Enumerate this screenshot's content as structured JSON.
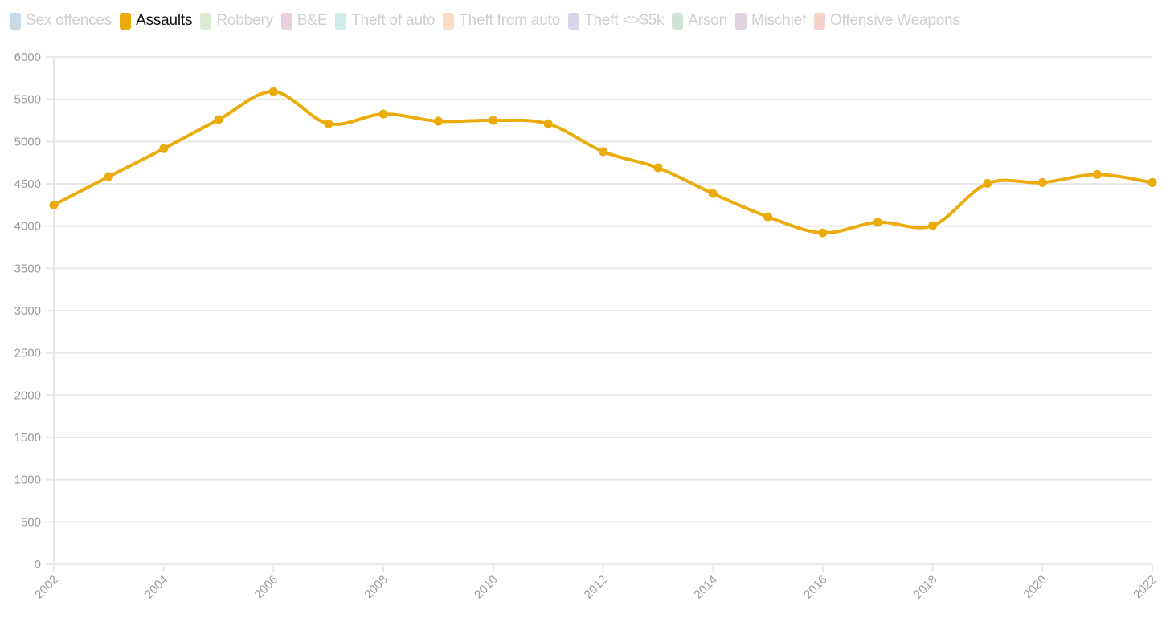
{
  "legend": [
    {
      "label": "Sex offences",
      "color": "#c9d9e6",
      "active": false
    },
    {
      "label": "Assaults",
      "color": "#ebab0b",
      "active": true
    },
    {
      "label": "Robbery",
      "color": "#dcebd3",
      "active": false
    },
    {
      "label": "B&E",
      "color": "#e8d0df",
      "active": false
    },
    {
      "label": "Theft of auto",
      "color": "#d1ebe9",
      "active": false
    },
    {
      "label": "Theft from auto",
      "color": "#f8dcc8",
      "active": false
    },
    {
      "label": "Theft <>$5k",
      "color": "#d8d5ea",
      "active": false
    },
    {
      "label": "Arson",
      "color": "#cfe4d7",
      "active": false
    },
    {
      "label": "Mischief",
      "color": "#e0d3e0",
      "active": false
    },
    {
      "label": "Offensive Weapons",
      "color": "#f6d2cc",
      "active": false
    }
  ],
  "colors": {
    "series": "#ebab0b",
    "grid": "#e8e8e8",
    "tick_text": "#9a9a9a"
  },
  "chart_data": {
    "type": "line",
    "title": "",
    "xlabel": "",
    "ylabel": "",
    "x": [
      2002,
      2003,
      2004,
      2005,
      2006,
      2007,
      2008,
      2009,
      2010,
      2011,
      2012,
      2013,
      2014,
      2015,
      2016,
      2017,
      2018,
      2019,
      2020,
      2021,
      2022
    ],
    "series": [
      {
        "name": "Assaults",
        "color": "#ebab0b",
        "values": [
          4250,
          4585,
          4915,
          5260,
          5590,
          5210,
          5325,
          5240,
          5250,
          5210,
          4880,
          4690,
          4385,
          4110,
          3920,
          4045,
          4005,
          4505,
          4515,
          4610,
          4515
        ]
      }
    ],
    "hidden_series": [
      "Sex offences",
      "Robbery",
      "B&E",
      "Theft of auto",
      "Theft from auto",
      "Theft <>$5k",
      "Arson",
      "Mischief",
      "Offensive Weapons"
    ],
    "ylim": [
      0,
      6000
    ],
    "y_ticks": [
      0,
      500,
      1000,
      1500,
      2000,
      2500,
      3000,
      3500,
      4000,
      4500,
      5000,
      5500,
      6000
    ],
    "x_ticks": [
      2002,
      2004,
      2006,
      2008,
      2010,
      2012,
      2014,
      2016,
      2018,
      2020,
      2022
    ],
    "x_tick_rotation": -45,
    "grid": true,
    "smooth": true,
    "markers": true,
    "legend_position": "top"
  }
}
